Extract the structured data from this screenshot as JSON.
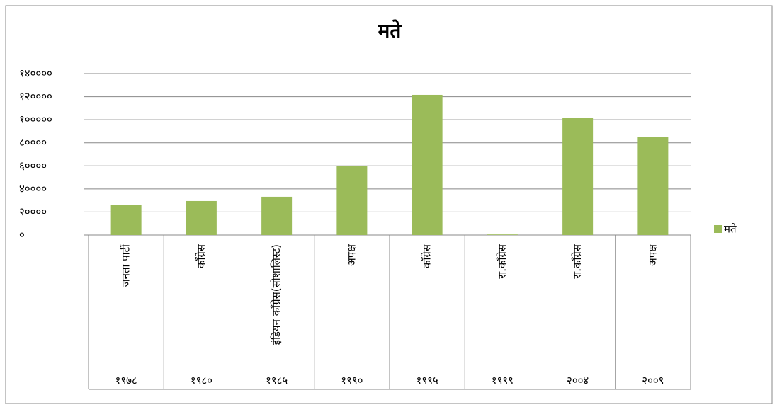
{
  "chart_data": {
    "type": "bar",
    "title": "मते",
    "categories": [
      "जनता पार्टी",
      "काँग्रेस",
      "इंडियन काँग्रेस(सोशालिस्ट)",
      "अपक्ष",
      "काँग्रेस",
      "रा.काँग्रेस",
      "रा.काँग्रेस",
      "अपक्ष"
    ],
    "years": [
      "१९७८",
      "१९८०",
      "१९८५",
      "१९९०",
      "१९९५",
      "१९९९",
      "२००४",
      "२००९"
    ],
    "series": [
      {
        "name": "मते",
        "color": "#9bbb59",
        "values": [
          26400,
          29500,
          33200,
          59600,
          121600,
          500,
          101900,
          85300
        ]
      }
    ],
    "ylim": [
      0,
      140000
    ],
    "yticks": [
      {
        "value": 0,
        "label": "०"
      },
      {
        "value": 20000,
        "label": "२००००"
      },
      {
        "value": 40000,
        "label": "४००००"
      },
      {
        "value": 60000,
        "label": "६००००"
      },
      {
        "value": 80000,
        "label": "८००००"
      },
      {
        "value": 100000,
        "label": "१०००००"
      },
      {
        "value": 120000,
        "label": "१२००००"
      },
      {
        "value": 140000,
        "label": "१४००००"
      }
    ],
    "grid": true,
    "legend": "right"
  }
}
